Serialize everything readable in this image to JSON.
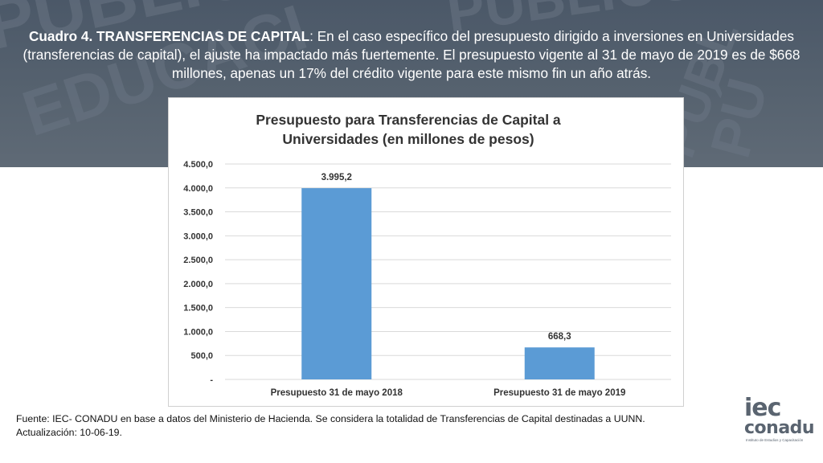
{
  "heading": {
    "bold": "Cuadro 4. TRANSFERENCIAS DE CAPITAL",
    "body": ": En el caso específico del presupuesto dirigido a inversiones en Universidades (transferencias de capital), el ajuste ha impactado más fuertemente. El presupuesto vigente al 31 de mayo de 2019 es de $668 millones, apenas un 17% del crédito vigente para este mismo fin un año atrás."
  },
  "chart_data": {
    "type": "bar",
    "title_line1": "Presupuesto para Transferencias de Capital a",
    "title_line2": "Universidades (en millones de pesos)",
    "categories": [
      "Presupuesto 31 de mayo 2018",
      "Presupuesto 31 de mayo 2019"
    ],
    "values": [
      3995.2,
      668.3
    ],
    "data_labels": [
      "3.995,2",
      "668,3"
    ],
    "yticks": [
      "-",
      "500,0",
      "1.000,0",
      "1.500,0",
      "2.000,0",
      "2.500,0",
      "3.000,0",
      "3.500,0",
      "4.000,0",
      "4.500,0"
    ],
    "ylim": [
      0,
      4500
    ],
    "grid": true,
    "bar_color": "#5b9bd5"
  },
  "footer": {
    "line1": "Fuente: IEC- CONADU en base a datos del Ministerio de Hacienda. Se considera la totalidad de Transferencias de Capital destinadas a UUNN.",
    "line2": "Actualización: 10-06-19."
  },
  "logo": {
    "line1": "iec",
    "line2": "conadu",
    "sub": "Instituto de Estudios y Capacitación"
  }
}
